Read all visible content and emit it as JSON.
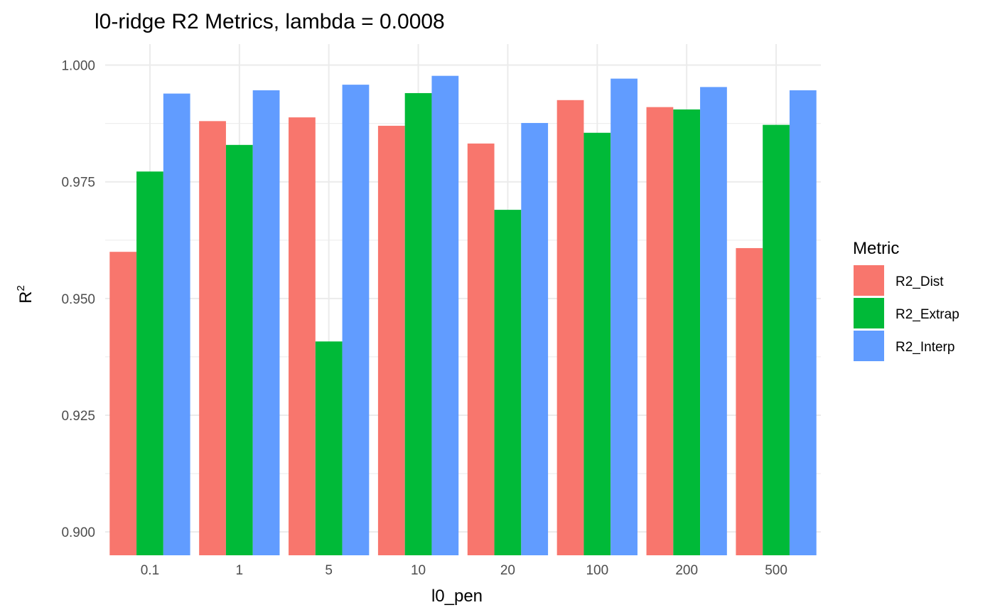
{
  "chart_data": {
    "type": "bar",
    "title": "l0-ridge R2 Metrics, lambda = 0.0008",
    "xlabel": "l0_pen",
    "ylabel": "R",
    "ylabel_superscript": "2",
    "categories": [
      "0.1",
      "1",
      "5",
      "10",
      "20",
      "100",
      "200",
      "500"
    ],
    "yticks": [
      "0.900",
      "0.925",
      "0.950",
      "0.975",
      "1.000"
    ],
    "ylim": [
      0.895,
      1.0045
    ],
    "grid": true,
    "legend": {
      "title": "Metric",
      "position": "right"
    },
    "series": [
      {
        "name": "R2_Dist",
        "color": "#F8766D",
        "values": [
          0.96,
          0.988,
          0.9888,
          0.987,
          0.9832,
          0.9925,
          0.991,
          0.9608
        ]
      },
      {
        "name": "R2_Extrap",
        "color": "#00BA38",
        "values": [
          0.9772,
          0.9829,
          0.9408,
          0.994,
          0.969,
          0.9855,
          0.9905,
          0.9872
        ]
      },
      {
        "name": "R2_Interp",
        "color": "#619CFF",
        "values": [
          0.9939,
          0.9946,
          0.9958,
          0.9977,
          0.9876,
          0.9971,
          0.9953,
          0.9946
        ]
      }
    ]
  }
}
